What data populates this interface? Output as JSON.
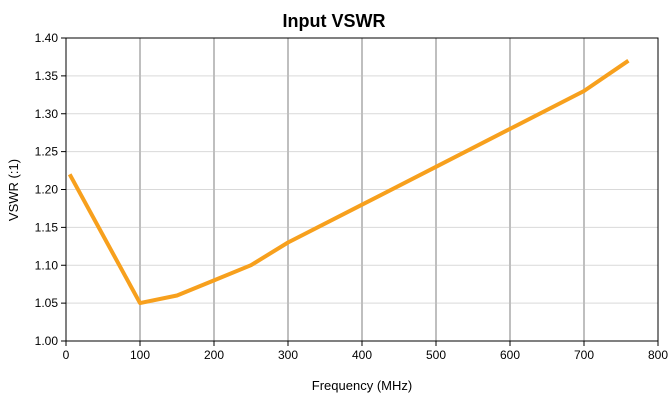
{
  "chart_data": {
    "type": "line",
    "title": "Input VSWR",
    "xlabel": "Frequency (MHz)",
    "ylabel": "VSWR (:1)",
    "xlim": [
      0,
      800
    ],
    "ylim": [
      1.0,
      1.4
    ],
    "x_ticks": [
      "0",
      "100",
      "200",
      "300",
      "400",
      "500",
      "600",
      "700",
      "800"
    ],
    "y_ticks": [
      "1.00",
      "1.05",
      "1.10",
      "1.15",
      "1.20",
      "1.25",
      "1.30",
      "1.35",
      "1.40"
    ],
    "grid": true,
    "legend": "none",
    "series": [
      {
        "color": "#f7a01d",
        "x": [
          5,
          100,
          150,
          200,
          250,
          300,
          400,
          500,
          600,
          700,
          760
        ],
        "y": [
          1.22,
          1.05,
          1.06,
          1.08,
          1.1,
          1.13,
          1.18,
          1.23,
          1.28,
          1.33,
          1.37
        ]
      }
    ],
    "colors": {
      "line": "#f7a01d",
      "x_grid": "#bfbfbf",
      "y_grid": "#d9d9d9",
      "axis": "#000000"
    }
  }
}
